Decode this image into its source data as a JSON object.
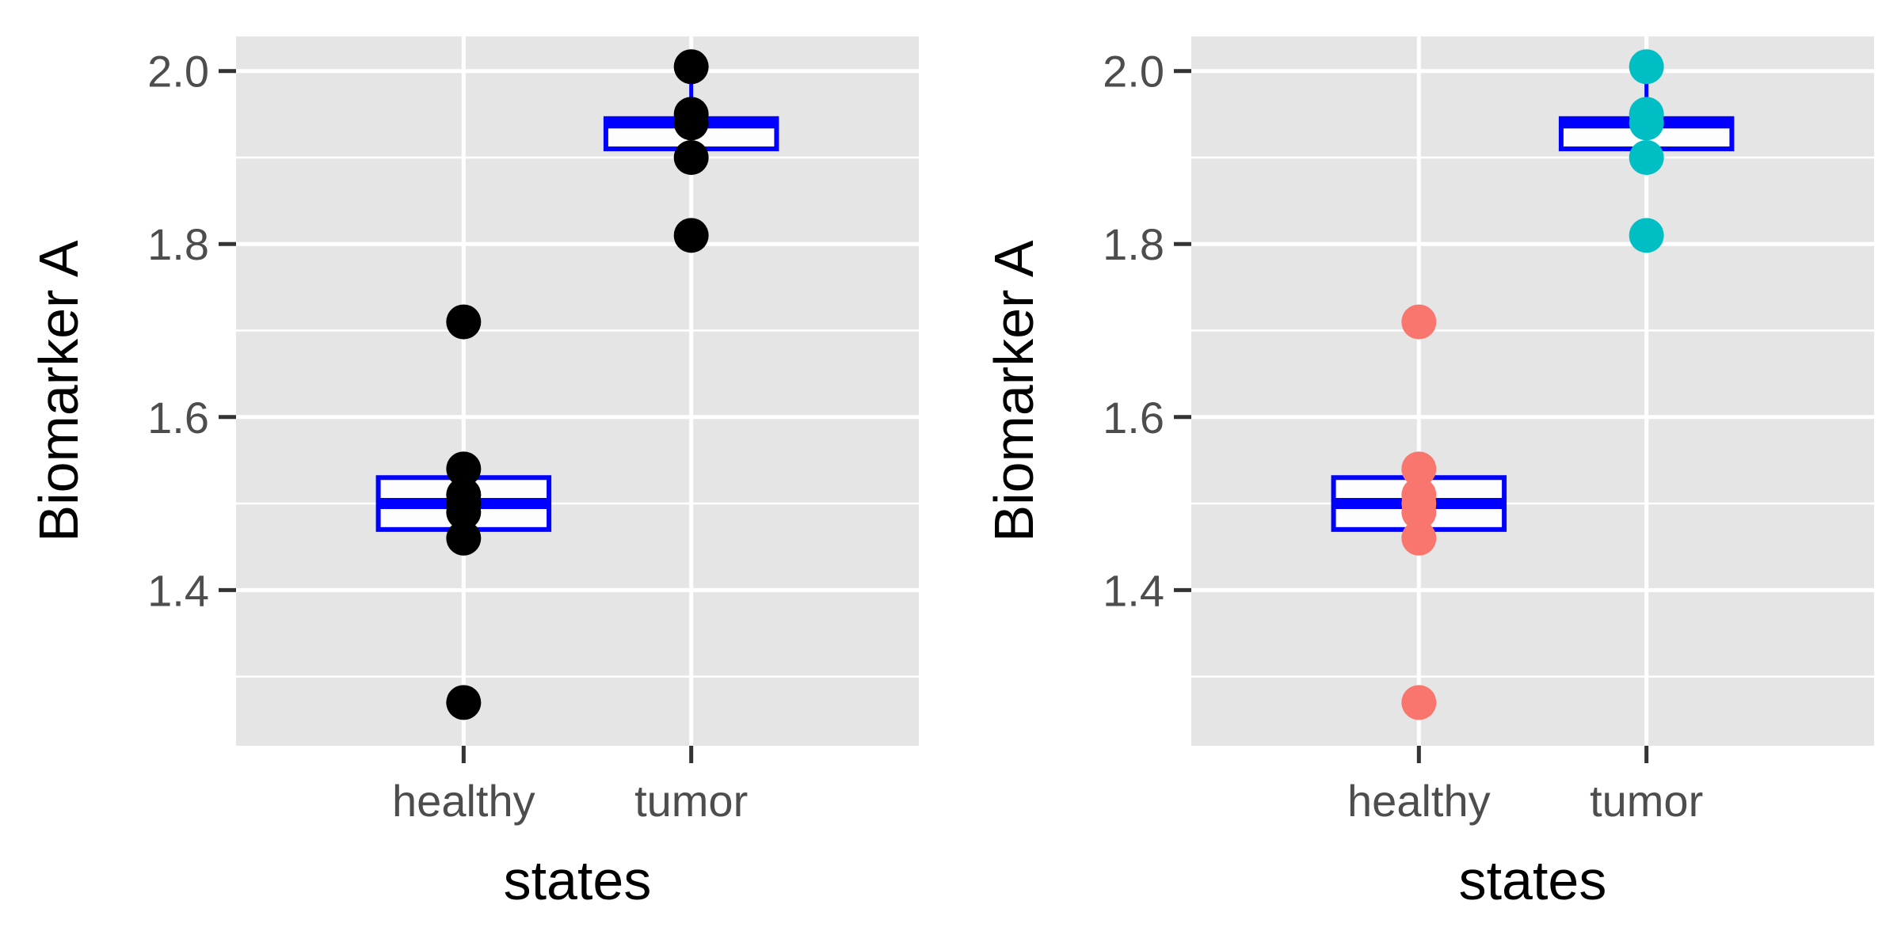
{
  "chart_data": [
    {
      "type": "box",
      "panel": "left",
      "xlabel": "states",
      "ylabel": "Biomarker A",
      "categories": [
        "healthy",
        "tumor"
      ],
      "ylim": [
        1.22,
        2.04
      ],
      "yticks": [
        1.4,
        1.6,
        1.8,
        2.0
      ],
      "ytick_labels": [
        "1.4",
        "1.6",
        "1.8",
        "2.0"
      ],
      "grid": true,
      "point_colors": [
        "#000000",
        "#000000"
      ],
      "box_color": "#0000ff",
      "boxes": [
        {
          "category": "healthy",
          "lower": 1.47,
          "median": 1.5,
          "upper": 1.53,
          "whisker_low": 1.46,
          "whisker_high": 1.54
        },
        {
          "category": "tumor",
          "lower": 1.91,
          "median": 1.94,
          "upper": 1.945,
          "whisker_low": 1.9,
          "whisker_high": 2.005
        }
      ],
      "points": [
        {
          "category": "healthy",
          "values": [
            1.71,
            1.54,
            1.51,
            1.5,
            1.49,
            1.46,
            1.27
          ]
        },
        {
          "category": "tumor",
          "values": [
            2.005,
            1.95,
            1.94,
            1.9,
            1.81
          ]
        }
      ]
    },
    {
      "type": "box",
      "panel": "right",
      "xlabel": "states",
      "ylabel": "Biomarker A",
      "categories": [
        "healthy",
        "tumor"
      ],
      "ylim": [
        1.22,
        2.04
      ],
      "yticks": [
        1.4,
        1.6,
        1.8,
        2.0
      ],
      "ytick_labels": [
        "1.4",
        "1.6",
        "1.8",
        "2.0"
      ],
      "grid": true,
      "point_colors": [
        "#f8766d",
        "#00bfc4"
      ],
      "box_color": "#0000ff",
      "boxes": [
        {
          "category": "healthy",
          "lower": 1.47,
          "median": 1.5,
          "upper": 1.53,
          "whisker_low": 1.46,
          "whisker_high": 1.54
        },
        {
          "category": "tumor",
          "lower": 1.91,
          "median": 1.94,
          "upper": 1.945,
          "whisker_low": 1.9,
          "whisker_high": 2.005
        }
      ],
      "points": [
        {
          "category": "healthy",
          "values": [
            1.71,
            1.54,
            1.51,
            1.5,
            1.49,
            1.46,
            1.27
          ]
        },
        {
          "category": "tumor",
          "values": [
            2.005,
            1.95,
            1.94,
            1.9,
            1.81
          ]
        }
      ]
    }
  ]
}
